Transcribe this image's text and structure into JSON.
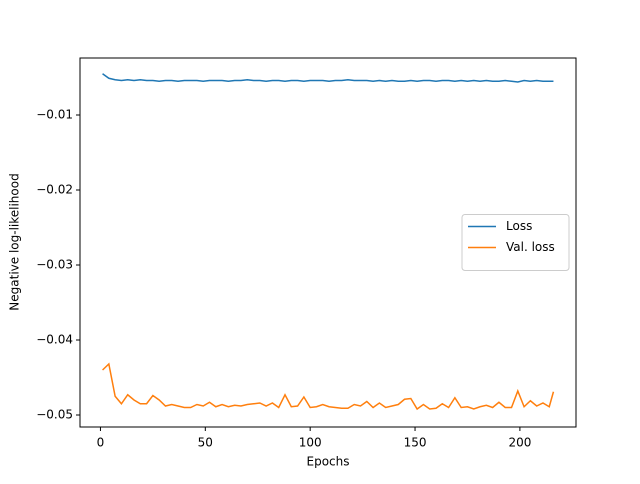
{
  "chart_data": {
    "type": "line",
    "xlabel": "Epochs",
    "ylabel": "Negative log-likelihood",
    "x": [
      1,
      4,
      7,
      10,
      13,
      16,
      19,
      22,
      25,
      28,
      31,
      34,
      37,
      40,
      43,
      46,
      49,
      52,
      55,
      58,
      61,
      64,
      67,
      70,
      73,
      76,
      79,
      82,
      85,
      88,
      91,
      94,
      97,
      100,
      103,
      106,
      109,
      112,
      115,
      118,
      121,
      124,
      127,
      130,
      133,
      136,
      139,
      142,
      145,
      148,
      151,
      154,
      157,
      160,
      163,
      166,
      169,
      172,
      175,
      178,
      181,
      184,
      187,
      190,
      193,
      196,
      199,
      202,
      205,
      208,
      211,
      214,
      216
    ],
    "series": [
      {
        "name": "Loss",
        "color": "#1f77b4",
        "values": [
          -0.0045,
          -0.0051,
          -0.0053,
          -0.0054,
          -0.0053,
          -0.0054,
          -0.0053,
          -0.0054,
          -0.0054,
          -0.0055,
          -0.0054,
          -0.0054,
          -0.0055,
          -0.0054,
          -0.0054,
          -0.0054,
          -0.0055,
          -0.0054,
          -0.0054,
          -0.0054,
          -0.0055,
          -0.0054,
          -0.0054,
          -0.0053,
          -0.0054,
          -0.0054,
          -0.0055,
          -0.0054,
          -0.0054,
          -0.0055,
          -0.0054,
          -0.0054,
          -0.0055,
          -0.0054,
          -0.0054,
          -0.0054,
          -0.0055,
          -0.0054,
          -0.0054,
          -0.0053,
          -0.0054,
          -0.0054,
          -0.0054,
          -0.0055,
          -0.0054,
          -0.0055,
          -0.0054,
          -0.0055,
          -0.0055,
          -0.0054,
          -0.0055,
          -0.0054,
          -0.0054,
          -0.0055,
          -0.0054,
          -0.0054,
          -0.0055,
          -0.0054,
          -0.0055,
          -0.0054,
          -0.0055,
          -0.0054,
          -0.0055,
          -0.0055,
          -0.0054,
          -0.0055,
          -0.0056,
          -0.0054,
          -0.0055,
          -0.0054,
          -0.0055,
          -0.0055,
          -0.0055
        ]
      },
      {
        "name": "Val. loss",
        "color": "#ff7f0e",
        "values": [
          -0.044,
          -0.0432,
          -0.0475,
          -0.0485,
          -0.0473,
          -0.048,
          -0.0485,
          -0.0485,
          -0.0474,
          -0.048,
          -0.0488,
          -0.0486,
          -0.0488,
          -0.049,
          -0.049,
          -0.0486,
          -0.0488,
          -0.0483,
          -0.0489,
          -0.0486,
          -0.0489,
          -0.0487,
          -0.0488,
          -0.0486,
          -0.0485,
          -0.0484,
          -0.0488,
          -0.0484,
          -0.049,
          -0.0473,
          -0.0489,
          -0.0488,
          -0.0476,
          -0.049,
          -0.0489,
          -0.0486,
          -0.0489,
          -0.049,
          -0.0491,
          -0.0491,
          -0.0486,
          -0.0488,
          -0.0482,
          -0.049,
          -0.0484,
          -0.049,
          -0.0488,
          -0.0486,
          -0.0479,
          -0.0478,
          -0.0492,
          -0.0486,
          -0.0492,
          -0.0491,
          -0.0485,
          -0.049,
          -0.0477,
          -0.049,
          -0.0489,
          -0.0492,
          -0.0489,
          -0.0487,
          -0.049,
          -0.0483,
          -0.049,
          -0.049,
          -0.0468,
          -0.0489,
          -0.0481,
          -0.0488,
          -0.0484,
          -0.0489,
          -0.0469
        ]
      }
    ],
    "xlim": [
      -9.75,
      226.75
    ],
    "xticks": [
      0,
      50,
      100,
      150,
      200
    ],
    "ylim": [
      -0.0516,
      -0.0024
    ],
    "yticks": [
      {
        "value": -0.05,
        "label": "−0.05"
      },
      {
        "value": -0.04,
        "label": "−0.04"
      },
      {
        "value": -0.03,
        "label": "−0.03"
      },
      {
        "value": -0.02,
        "label": "−0.02"
      },
      {
        "value": -0.01,
        "label": "−0.01"
      }
    ],
    "grid": false,
    "legend": "center right"
  }
}
